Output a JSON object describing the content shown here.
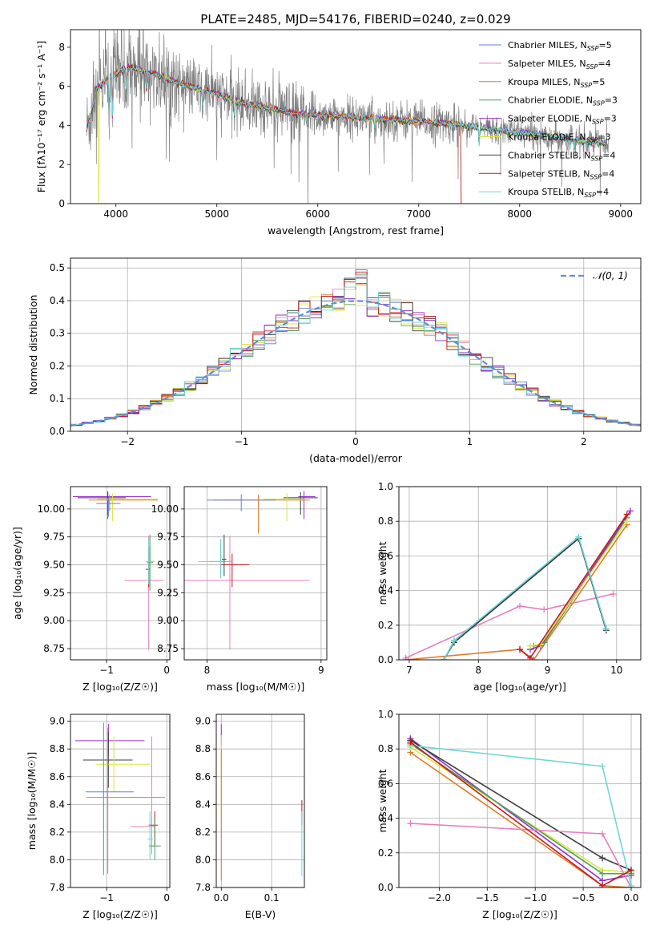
{
  "figure": {
    "title": "PLATE=2485, MJD=54176, FIBERID=0240, z=0.029"
  },
  "colors": {
    "chabrier_miles": "#5f7ede",
    "salpeter_miles": "#e57fbc",
    "kroupa_miles": "#e07a26",
    "chabrier_elodie": "#4f9e5a",
    "salpeter_elodie": "#9232c8",
    "kroupa_elodie": "#d9e63a",
    "chabrier_stelib": "#3d3d3d",
    "salpeter_stelib": "#c41b1b",
    "kroupa_stelib": "#6fd6d6",
    "data": "#808080",
    "gaussian": "#5b8fd6",
    "grid": "#b0b0b0"
  },
  "chart_data": [
    {
      "id": "spectrum",
      "type": "line",
      "title": "PLATE=2485, MJD=54176, FIBERID=0240, z=0.029",
      "xlabel": "wavelength [Angstrom, rest frame]",
      "ylabel": "Flux [fλ10⁻¹⁷ erg cm⁻² s⁻¹ A⁻¹]",
      "xlim": [
        3550,
        9200
      ],
      "ylim": [
        0,
        8.9
      ],
      "xticks": [
        4000,
        5000,
        6000,
        7000,
        8000,
        9000
      ],
      "yticks": [
        0,
        2,
        4,
        6,
        8
      ],
      "grid": false,
      "legend_position": "top-right",
      "legend": [
        {
          "key": "chabrier_miles",
          "label": "Chabrier MILES, N",
          "sub": "SSP",
          "tail": "=5"
        },
        {
          "key": "salpeter_miles",
          "label": "Salpeter MILES, N",
          "sub": "SSP",
          "tail": "=4"
        },
        {
          "key": "kroupa_miles",
          "label": "Kroupa MILES, N",
          "sub": "SSP",
          "tail": "=5"
        },
        {
          "key": "chabrier_elodie",
          "label": "Chabrier ELODIE, N",
          "sub": "SSP",
          "tail": "=3"
        },
        {
          "key": "salpeter_elodie",
          "label": "Salpeter ELODIE, N",
          "sub": "SSP",
          "tail": "=3"
        },
        {
          "key": "kroupa_elodie",
          "label": "Kroupa ELODIE, N",
          "sub": "SSP",
          "tail": "=3"
        },
        {
          "key": "chabrier_stelib",
          "label": "Chabrier STELIB, N",
          "sub": "SSP",
          "tail": "=4"
        },
        {
          "key": "salpeter_stelib",
          "label": "Salpeter STELIB, N",
          "sub": "SSP",
          "tail": "=4"
        },
        {
          "key": "kroupa_stelib",
          "label": "Kroupa STELIB, N",
          "sub": "SSP",
          "tail": "=4"
        }
      ],
      "continuum": {
        "x": [
          3710,
          3750,
          3800,
          3900,
          4000,
          4100,
          4200,
          4300,
          4400,
          4500,
          4600,
          4800,
          5000,
          5200,
          5500,
          5800,
          6100,
          6400,
          6700,
          7000,
          7300,
          7600,
          7900,
          8200,
          8500,
          8800
        ],
        "y": [
          4.7,
          5.0,
          5.8,
          6.3,
          6.6,
          7.0,
          6.9,
          6.7,
          6.6,
          6.4,
          6.2,
          5.9,
          5.6,
          5.2,
          4.9,
          4.6,
          4.5,
          4.4,
          4.3,
          4.2,
          4.1,
          3.9,
          3.7,
          3.5,
          3.3,
          3.1
        ]
      }
    },
    {
      "id": "residuals",
      "type": "histogram",
      "xlabel": "(data-model)/error",
      "ylabel": "Normed distribution",
      "xlim": [
        -2.5,
        2.5
      ],
      "ylim": [
        0,
        0.53
      ],
      "xticks": [
        -2,
        -1,
        0,
        1,
        2
      ],
      "yticks": [
        0.0,
        0.1,
        0.2,
        0.3,
        0.4,
        0.5
      ],
      "grid": true,
      "legend_position": "top-right",
      "gaussian_label": "𝒩(0, 1)",
      "bin_width": 0.1
    },
    {
      "id": "age_vs_Z",
      "type": "errorbar",
      "xlabel": "Z [log₁₀(Z/Z☉)]",
      "ylabel": "age  [log₁₀(age/yr)]",
      "xlim": [
        -1.6,
        0.05
      ],
      "ylim": [
        8.65,
        10.2
      ],
      "xticks": [
        -1,
        0
      ],
      "yticks": [
        8.75,
        9.0,
        9.25,
        9.5,
        9.75,
        10.0
      ],
      "grid": true,
      "points": [
        {
          "key": "salpeter_elodie",
          "x": -0.98,
          "xerr": [
            0.58,
            0.72
          ],
          "y": 10.11,
          "yerr": [
            0.2,
            0.05
          ]
        },
        {
          "key": "chabrier_stelib",
          "x": -0.98,
          "xerr": [
            0.5,
            0.3
          ],
          "y": 10.1,
          "yerr": [
            0.15,
            0.05
          ]
        },
        {
          "key": "kroupa_miles",
          "x": -0.95,
          "xerr": [
            0.35,
            0.8
          ],
          "y": 10.08,
          "yerr": [
            0.1,
            0.05
          ]
        },
        {
          "key": "kroupa_elodie",
          "x": -0.9,
          "xerr": [
            0.25,
            0.75
          ],
          "y": 10.09,
          "yerr": [
            0.2,
            0.05
          ]
        },
        {
          "key": "chabrier_miles",
          "x": -0.97,
          "xerr": [
            0.2,
            0.2
          ],
          "y": 10.05,
          "yerr": [
            0.12,
            0.05
          ]
        },
        {
          "key": "salpeter_miles",
          "x": -0.3,
          "xerr": [
            0.4,
            0.25
          ],
          "y": 9.36,
          "yerr": [
            0.62,
            0.4
          ]
        },
        {
          "key": "chabrier_elodie",
          "x": -0.28,
          "xerr": [
            0.05,
            0.05
          ],
          "y": 9.52,
          "yerr": [
            0.25,
            0.25
          ]
        },
        {
          "key": "salpeter_stelib",
          "x": -0.3,
          "xerr": [
            0.05,
            0.02
          ],
          "y": 9.46,
          "yerr": [
            0.16,
            0.2
          ]
        },
        {
          "key": "kroupa_stelib",
          "x": -0.3,
          "xerr": [
            0.05,
            0.1
          ],
          "y": 9.53,
          "yerr": [
            0.2,
            0.2
          ]
        }
      ]
    },
    {
      "id": "age_vs_mass",
      "type": "errorbar",
      "xlabel": "mass [log₁₀(M/M☉)]",
      "ylabel": "",
      "xlim": [
        7.8,
        9.05
      ],
      "ylim": [
        8.65,
        10.2
      ],
      "xticks": [
        8,
        9
      ],
      "yticks": [
        8.75,
        9.0,
        9.25,
        9.5,
        9.75,
        10.0
      ],
      "grid": true,
      "points": [
        {
          "key": "salpeter_elodie",
          "x": 8.85,
          "xerr": [
            0.05,
            0.1
          ],
          "y": 10.11,
          "yerr": [
            0.2,
            0.05
          ]
        },
        {
          "key": "chabrier_stelib",
          "x": 8.82,
          "xerr": [
            0.15,
            0.15
          ],
          "y": 10.1,
          "yerr": [
            0.15,
            0.05
          ]
        },
        {
          "key": "kroupa_miles",
          "x": 8.45,
          "xerr": [
            0.4,
            0.45
          ],
          "y": 10.08,
          "yerr": [
            0.3,
            0.05
          ]
        },
        {
          "key": "kroupa_elodie",
          "x": 8.7,
          "xerr": [
            0.2,
            0.15
          ],
          "y": 10.09,
          "yerr": [
            0.2,
            0.05
          ]
        },
        {
          "key": "chabrier_miles",
          "x": 8.3,
          "xerr": [
            0.3,
            0.3
          ],
          "y": 10.08,
          "yerr": [
            0.1,
            0.05
          ]
        },
        {
          "key": "salpeter_miles",
          "x": 8.2,
          "xerr": [
            0.4,
            0.7
          ],
          "y": 9.36,
          "yerr": [
            0.62,
            0.4
          ]
        },
        {
          "key": "chabrier_elodie",
          "x": 8.12,
          "xerr": [
            0.1,
            0.1
          ],
          "y": 9.53,
          "yerr": [
            0.15,
            0.2
          ]
        },
        {
          "key": "salpeter_stelib",
          "x": 8.22,
          "xerr": [
            0.1,
            0.15
          ],
          "y": 9.5,
          "yerr": [
            0.2,
            0.1
          ]
        },
        {
          "key": "kroupa_stelib",
          "x": 8.12,
          "xerr": [
            0.2,
            0.1
          ],
          "y": 9.53,
          "yerr": [
            0.15,
            0.2
          ]
        },
        {
          "key": "chabrier_stelib",
          "x": 8.15,
          "xerr": [
            0.02,
            0.02
          ],
          "y": 9.55,
          "yerr": [
            0.15,
            0.22
          ]
        }
      ]
    },
    {
      "id": "weight_vs_age",
      "type": "line",
      "xlabel": "age  [log₁₀(age/yr)]",
      "ylabel": "mass weight",
      "xlim": [
        6.85,
        10.35
      ],
      "ylim": [
        0,
        1.0
      ],
      "xticks": [
        7,
        8,
        9,
        10
      ],
      "yticks": [
        0.0,
        0.2,
        0.4,
        0.6,
        0.8,
        1.0
      ],
      "grid": true,
      "series": [
        {
          "key": "chabrier_miles",
          "x": [
            7.5,
            7.65,
            9.45,
            9.85
          ],
          "y": [
            0.0,
            0.11,
            0.7,
            0.18
          ]
        },
        {
          "key": "salpeter_miles",
          "x": [
            6.95,
            8.6,
            8.95,
            9.95
          ],
          "y": [
            0.01,
            0.31,
            0.29,
            0.38
          ]
        },
        {
          "key": "kroupa_miles",
          "x": [
            6.95,
            8.6,
            8.8,
            10.15
          ],
          "y": [
            0.0,
            0.06,
            0.0,
            0.78
          ]
        },
        {
          "key": "chabrier_elodie",
          "x": [
            8.8,
            8.95,
            10.15
          ],
          "y": [
            0.08,
            0.1,
            0.82
          ]
        },
        {
          "key": "salpeter_elodie",
          "x": [
            8.75,
            8.9,
            10.2
          ],
          "y": [
            0.06,
            0.08,
            0.86
          ]
        },
        {
          "key": "kroupa_elodie",
          "x": [
            8.75,
            8.9,
            10.15
          ],
          "y": [
            0.08,
            0.09,
            0.8
          ]
        },
        {
          "key": "chabrier_stelib",
          "x": [
            7.5,
            7.65,
            9.45,
            9.85
          ],
          "y": [
            0.0,
            0.1,
            0.7,
            0.17
          ]
        },
        {
          "key": "salpeter_stelib",
          "x": [
            8.6,
            8.75,
            10.15
          ],
          "y": [
            0.06,
            0.01,
            0.84
          ]
        },
        {
          "key": "kroupa_stelib",
          "x": [
            7.5,
            7.65,
            9.45,
            9.85
          ],
          "y": [
            0.0,
            0.11,
            0.71,
            0.18
          ]
        }
      ]
    },
    {
      "id": "mass_vs_Z",
      "type": "errorbar",
      "xlabel": "Z [log₁₀(Z/Z☉)]",
      "ylabel": "mass [log₁₀(M/M☉)]",
      "xlim": [
        -1.6,
        0.05
      ],
      "ylim": [
        7.8,
        9.05
      ],
      "xticks": [
        -1,
        0
      ],
      "yticks": [
        7.8,
        8.0,
        8.2,
        8.4,
        8.6,
        8.8,
        9.0
      ],
      "grid": true,
      "points": [
        {
          "key": "salpeter_elodie",
          "x": -0.97,
          "xerr": [
            0.55,
            0.6
          ],
          "y": 8.86,
          "yerr": [
            0.1,
            0.12
          ]
        },
        {
          "key": "chabrier_stelib",
          "x": -0.97,
          "xerr": [
            0.42,
            0.4
          ],
          "y": 8.72,
          "yerr": [
            0.2,
            0.2
          ]
        },
        {
          "key": "kroupa_elodie",
          "x": -0.88,
          "xerr": [
            0.3,
            0.6
          ],
          "y": 8.69,
          "yerr": [
            0.2,
            0.2
          ]
        },
        {
          "key": "chabrier_miles",
          "x": -1.05,
          "xerr": [
            0.3,
            0.5
          ],
          "y": 8.49,
          "yerr": [
            0.6,
            0.5
          ]
        },
        {
          "key": "kroupa_miles",
          "x": -0.98,
          "xerr": [
            0.35,
            0.95
          ],
          "y": 8.45,
          "yerr": [
            0.55,
            0.5
          ]
        },
        {
          "key": "salpeter_miles",
          "x": -0.25,
          "xerr": [
            0.35,
            0.05
          ],
          "y": 8.24,
          "yerr": [
            0.2,
            0.65
          ]
        },
        {
          "key": "salpeter_stelib",
          "x": -0.2,
          "xerr": [
            0.1,
            0.05
          ],
          "y": 8.25,
          "yerr": [
            0.15,
            0.1
          ]
        },
        {
          "key": "chabrier_elodie",
          "x": -0.2,
          "xerr": [
            0.1,
            0.1
          ],
          "y": 8.1,
          "yerr": [
            0.1,
            0.2
          ]
        },
        {
          "key": "kroupa_stelib",
          "x": -0.28,
          "xerr": [
            0.05,
            0.05
          ],
          "y": 8.15,
          "yerr": [
            0.15,
            0.2
          ]
        }
      ]
    },
    {
      "id": "mass_vs_ebv",
      "type": "errorbar",
      "xlabel": "E(B-V)",
      "ylabel": "",
      "xlim": [
        -0.01,
        0.165
      ],
      "ylim": [
        7.8,
        9.05
      ],
      "xticks": [
        0.0,
        0.1
      ],
      "yticks": [
        7.8,
        8.0,
        8.2,
        8.4,
        8.6,
        8.8,
        9.0
      ],
      "grid": true,
      "points": [
        {
          "key": "salpeter_elodie",
          "x": 0.0,
          "xerr": [
            0,
            0
          ],
          "y": 8.9,
          "yerr": [
            0.08,
            0.08
          ]
        },
        {
          "key": "kroupa_elodie",
          "x": 0.0,
          "xerr": [
            0,
            0
          ],
          "y": 8.6,
          "yerr": [
            0.3,
            0.3
          ]
        },
        {
          "key": "kroupa_miles",
          "x": 0.0,
          "xerr": [
            0,
            0
          ],
          "y": 8.3,
          "yerr": [
            0.45,
            0.5
          ]
        },
        {
          "key": "salpeter_stelib",
          "x": 0.16,
          "xerr": [
            0,
            0
          ],
          "y": 8.35,
          "yerr": [
            0.1,
            0.08
          ]
        },
        {
          "key": "kroupa_stelib",
          "x": 0.16,
          "xerr": [
            0,
            0
          ],
          "y": 8.1,
          "yerr": [
            0.22,
            0.25
          ]
        }
      ]
    },
    {
      "id": "weight_vs_Z",
      "type": "line",
      "xlabel": "Z [log₁₀(Z/Z☉)]",
      "ylabel": "mass weight",
      "xlim": [
        -2.42,
        0.1
      ],
      "ylim": [
        0,
        1.0
      ],
      "xticks": [
        -2.0,
        -1.5,
        -1.0,
        -0.5,
        0.0
      ],
      "yticks": [
        0.0,
        0.2,
        0.4,
        0.6,
        0.8,
        1.0
      ],
      "grid": true,
      "series": [
        {
          "key": "salpeter_elodie",
          "x": [
            -2.3,
            -0.3,
            0.0
          ],
          "y": [
            0.86,
            0.04,
            0.07
          ]
        },
        {
          "key": "chabrier_stelib",
          "x": [
            -2.3,
            -0.3,
            0.0
          ],
          "y": [
            0.85,
            0.17,
            0.1
          ]
        },
        {
          "key": "kroupa_miles",
          "x": [
            -2.3,
            -0.3,
            0.0
          ],
          "y": [
            0.78,
            0.01,
            0.0
          ]
        },
        {
          "key": "kroupa_elodie",
          "x": [
            -2.3,
            -0.3,
            0.0
          ],
          "y": [
            0.81,
            0.1,
            0.09
          ]
        },
        {
          "key": "chabrier_elodie",
          "x": [
            -2.3,
            -0.3,
            0.0
          ],
          "y": [
            0.83,
            0.08,
            0.08
          ]
        },
        {
          "key": "salpeter_miles",
          "x": [
            -2.3,
            -0.3,
            0.0
          ],
          "y": [
            0.37,
            0.31,
            0.0
          ]
        },
        {
          "key": "kroupa_stelib",
          "x": [
            -2.3,
            -0.3,
            0.0
          ],
          "y": [
            0.82,
            0.7,
            0.01
          ]
        },
        {
          "key": "salpeter_stelib",
          "x": [
            -2.3,
            -0.3,
            0.0
          ],
          "y": [
            0.84,
            0.01,
            0.1
          ]
        }
      ]
    }
  ]
}
